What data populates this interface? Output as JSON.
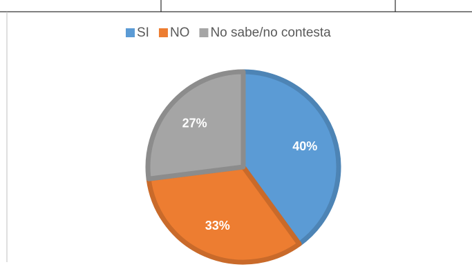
{
  "chart_data": {
    "type": "pie",
    "categories": [
      "SI",
      "NO",
      "No sabe/no contesta"
    ],
    "values": [
      40,
      33,
      27
    ],
    "value_labels": [
      "40%",
      "33%",
      "27%"
    ],
    "colors": [
      "#5b9bd5",
      "#ed7d31",
      "#a5a5a5"
    ],
    "legend": "top"
  }
}
